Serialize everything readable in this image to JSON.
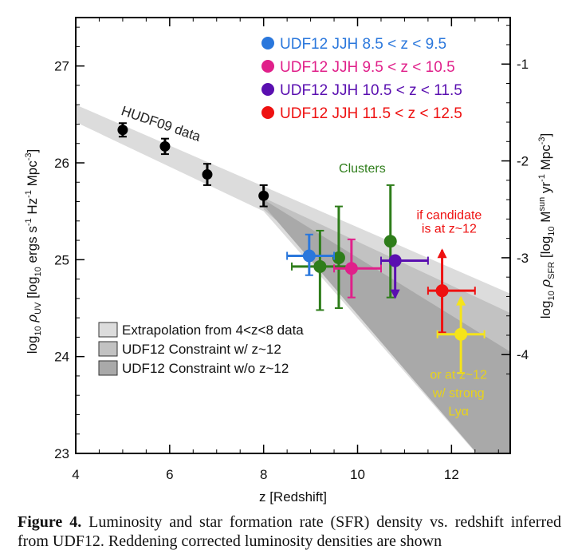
{
  "chart_data": {
    "type": "scatter",
    "xlabel": "z [Redshift]",
    "ylabel_left_parts": [
      "log",
      "10",
      "ρ",
      "UV",
      "[log",
      "10",
      "ergs s",
      "-1",
      "Hz",
      "-1",
      "Mpc",
      "-3",
      "]"
    ],
    "ylabel_right_parts": [
      "log",
      "10",
      "ρ",
      "SFR",
      "[log",
      "10",
      "M",
      "sun",
      "yr",
      "-1",
      "Mpc",
      "-3",
      "]"
    ],
    "xlim": [
      4,
      13.25
    ],
    "ylim": [
      23,
      27.5
    ],
    "x_ticks": [
      4,
      6,
      8,
      10,
      12
    ],
    "x_tick_labels": [
      "4",
      "6",
      "8",
      "10",
      "12"
    ],
    "y_ticks": [
      23,
      24,
      25,
      26,
      27
    ],
    "y_tick_labels": [
      "23",
      "24",
      "25",
      "26",
      "27"
    ],
    "y_right_ticks": [
      -1,
      -2,
      -3,
      -4
    ],
    "y_right_tick_labels": [
      "-1",
      "-2",
      "-3",
      "-4"
    ],
    "y_right_offset": 28.02,
    "series": [
      {
        "name": "HUDF09 data",
        "color": "#000000",
        "points": [
          {
            "x": 5.0,
            "y": 26.34,
            "yerr_lo": 0.07,
            "yerr_hi": 0.07
          },
          {
            "x": 5.9,
            "y": 26.17,
            "yerr_lo": 0.08,
            "yerr_hi": 0.08
          },
          {
            "x": 6.8,
            "y": 25.88,
            "yerr_lo": 0.11,
            "yerr_hi": 0.11
          },
          {
            "x": 8.0,
            "y": 25.66,
            "yerr_lo": 0.11,
            "yerr_hi": 0.11
          }
        ]
      },
      {
        "name": "Clusters",
        "color": "#2e7d1a",
        "points": [
          {
            "x": 9.2,
            "y": 24.93,
            "yerr_lo": 0.45,
            "yerr_hi": 0.37,
            "xerr_lo": 0.6,
            "xerr_hi": 0.7
          },
          {
            "x": 9.6,
            "y": 25.02,
            "yerr_lo": 0.52,
            "yerr_hi": 0.53
          },
          {
            "x": 10.7,
            "y": 25.19,
            "yerr_lo": 0.58,
            "yerr_hi": 0.58
          }
        ]
      },
      {
        "name": "UDF12 JJH 8.5 < z < 9.5",
        "color": "#2a77dc",
        "points": [
          {
            "x": 8.97,
            "y": 25.04,
            "yerr_lo": 0.2,
            "yerr_hi": 0.22,
            "xerr_lo": 0.47,
            "xerr_hi": 0.53
          }
        ]
      },
      {
        "name": "UDF12 JJH 9.5 < z < 10.5",
        "color": "#e0208a",
        "points": [
          {
            "x": 9.87,
            "y": 24.91,
            "yerr_lo": 0.3,
            "yerr_hi": 0.3,
            "xerr_lo": 0.37,
            "xerr_hi": 0.63
          }
        ]
      },
      {
        "name": "UDF12 JJH 10.5 < z < 11.5",
        "color": "#5a0fb0",
        "points": [
          {
            "x": 10.8,
            "y": 24.99,
            "yerr_lo": 0.38,
            "yerr_hi": 0.0,
            "xerr_lo": 0.3,
            "xerr_hi": 0.7,
            "upper_limit": true
          }
        ]
      },
      {
        "name": "UDF12 JJH 11.5 < z < 12.5",
        "color": "#ee1111",
        "points": [
          {
            "x": 11.8,
            "y": 24.68,
            "yerr_lo": 0.43,
            "yerr_hi": 0.42,
            "xerr_lo": 0.3,
            "xerr_hi": 0.7,
            "lower_limit": true
          }
        ]
      },
      {
        "name": "or at z~12 w/ strong Lyα",
        "color": "#f5e41a",
        "points": [
          {
            "x": 12.2,
            "y": 24.23,
            "yerr_lo": 0.4,
            "yerr_hi": 0.38,
            "xerr_lo": 0.5,
            "xerr_hi": 0.5,
            "lower_limit": true
          }
        ]
      }
    ],
    "bands": [
      {
        "name": "Extrapolation from 4<z<8 data",
        "color": "#dcdcdc",
        "upper": [
          [
            4,
            26.6
          ],
          [
            13.25,
            24.65
          ]
        ],
        "lower": [
          [
            4,
            26.42
          ],
          [
            8,
            25.5
          ],
          [
            13.25,
            22.6
          ]
        ]
      },
      {
        "name": "UDF12 Constraint w/ z~12",
        "color": "#c2c2c2",
        "upper": [
          [
            8,
            25.64
          ],
          [
            13.25,
            24.45
          ]
        ],
        "lower": [
          [
            8,
            25.52
          ],
          [
            13.25,
            23.3
          ]
        ]
      },
      {
        "name": "UDF12 Constraint w/o z~12",
        "color": "#a9a9a9",
        "upper": [
          [
            8,
            25.62
          ],
          [
            13.25,
            24.05
          ]
        ],
        "lower": [
          [
            8,
            25.56
          ],
          [
            13.25,
            22.6
          ]
        ]
      }
    ],
    "legend_top_right": [
      {
        "color": "#2a77dc",
        "label": "UDF12 JJH 8.5 < z < 9.5"
      },
      {
        "color": "#e0208a",
        "label": "UDF12 JJH 9.5 < z < 10.5"
      },
      {
        "color": "#5a0fb0",
        "label": "UDF12 JJH 10.5 < z < 11.5"
      },
      {
        "color": "#ee1111",
        "label": "UDF12 JJH 11.5 < z < 12.5"
      }
    ],
    "legend_bottom_left": [
      {
        "color": "#dcdcdc",
        "label": "Extrapolation from 4<z<8 data"
      },
      {
        "color": "#c2c2c2",
        "label": "UDF12 Constraint w/ z~12"
      },
      {
        "color": "#a9a9a9",
        "label": "UDF12 Constraint w/o z~12"
      }
    ],
    "annotations": {
      "hudf09": "HUDF09 data",
      "clusters": "Clusters",
      "candidate_line1": "if candidate",
      "candidate_line2": "is at z~12",
      "lya_line1": "or at z~12",
      "lya_line2": "w/ strong",
      "lya_line3": "Lyα"
    }
  },
  "caption": {
    "label": "Figure 4.",
    "text": " Luminosity and star formation rate (SFR) density vs. redshift inferred from UDF12. Reddening corrected luminosity densities are shown"
  }
}
